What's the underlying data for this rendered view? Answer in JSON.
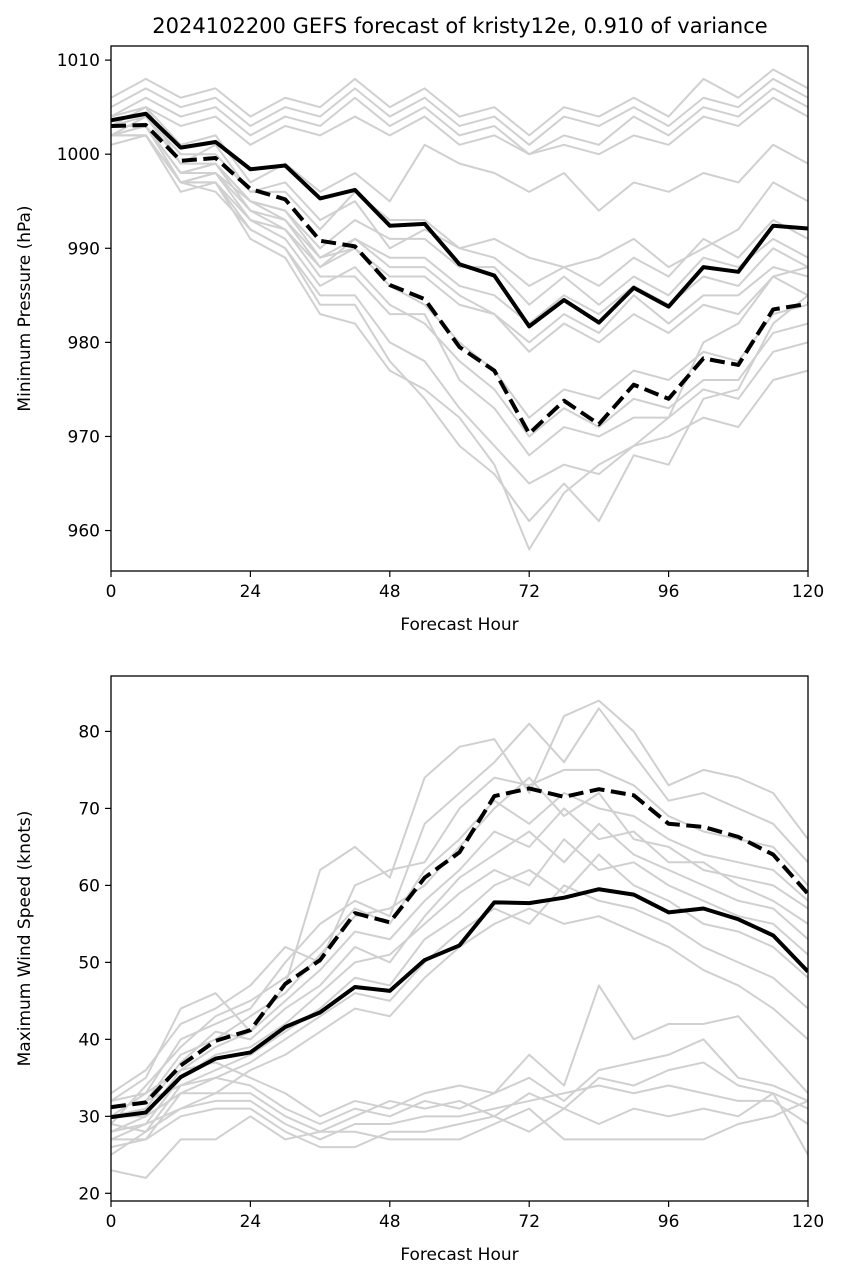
{
  "figure": {
    "title": "2024102200 GEFS forecast of kristy12e, 0.910 of variance"
  },
  "colors": {
    "member": "#d0d0d0",
    "highlight": "#000000",
    "axis": "#000000"
  },
  "chart_data": [
    {
      "type": "line",
      "title": "2024102200 GEFS forecast of kristy12e, 0.910 of variance",
      "xlabel": "Forecast Hour",
      "ylabel": "Minimum Pressure (hPa)",
      "xlim": [
        0,
        120
      ],
      "ylim": [
        955.7,
        1011.5
      ],
      "xticks": [
        0,
        24,
        48,
        72,
        96,
        120
      ],
      "yticks": [
        960,
        970,
        980,
        990,
        1000,
        1010
      ],
      "x": [
        0,
        6,
        12,
        18,
        24,
        30,
        36,
        42,
        48,
        54,
        60,
        66,
        72,
        78,
        84,
        90,
        96,
        102,
        108,
        114,
        120
      ],
      "grid": false,
      "series": [
        {
          "style": "member",
          "values": [
            1006,
            1008,
            1006,
            1007,
            1004,
            1006,
            1005,
            1008,
            1005,
            1007,
            1004,
            1005,
            1002,
            1005,
            1004,
            1006,
            1004,
            1008,
            1006,
            1009,
            1007
          ]
        },
        {
          "style": "member",
          "values": [
            1005,
            1007,
            1005,
            1006,
            1003,
            1005,
            1004,
            1007,
            1004,
            1006,
            1003,
            1004,
            1001,
            1004,
            1003,
            1005,
            1003,
            1006,
            1005,
            1008,
            1006
          ]
        },
        {
          "style": "member",
          "values": [
            1004,
            1006,
            1004,
            1005,
            1002,
            1004,
            1003,
            1006,
            1003,
            1005,
            1002,
            1003,
            1000,
            1002,
            1001,
            1004,
            1002,
            1005,
            1004,
            1007,
            1005
          ]
        },
        {
          "style": "member",
          "values": [
            1003,
            1005,
            1003,
            1004,
            1001,
            1003,
            1002,
            1004,
            1002,
            1004,
            1001,
            1002,
            1000,
            1001,
            1000,
            1002,
            1001,
            1004,
            1003,
            1006,
            1004
          ]
        },
        {
          "style": "member",
          "values": [
            1004,
            1005,
            1001,
            1002,
            997,
            999,
            996,
            998,
            995,
            1001,
            999,
            998,
            996,
            998,
            994,
            997,
            996,
            998,
            997,
            1001,
            999
          ]
        },
        {
          "style": "member",
          "values": [
            1003,
            1004,
            1000,
            1000,
            996,
            997,
            993,
            995,
            990,
            992,
            990,
            991,
            989,
            988,
            989,
            991,
            988,
            990,
            992,
            997,
            995
          ]
        },
        {
          "style": "member",
          "values": [
            1002,
            1004,
            999,
            1001,
            996,
            996,
            992,
            996,
            993,
            993,
            990,
            989,
            986,
            988,
            986,
            989,
            987,
            991,
            989,
            993,
            991
          ]
        },
        {
          "style": "member",
          "values": [
            1003,
            1003,
            998,
            998,
            995,
            994,
            990,
            993,
            991,
            991,
            988,
            988,
            984,
            987,
            984,
            987,
            985,
            989,
            988,
            991,
            989
          ]
        },
        {
          "style": "member",
          "values": [
            1002,
            1003,
            998,
            999,
            995,
            993,
            989,
            991,
            989,
            989,
            986,
            985,
            982,
            985,
            983,
            986,
            984,
            987,
            986,
            990,
            988
          ]
        },
        {
          "style": "member",
          "values": [
            1001,
            1002,
            997,
            997,
            993,
            992,
            988,
            990,
            987,
            987,
            984,
            983,
            980,
            983,
            981,
            985,
            982,
            985,
            985,
            988,
            987
          ]
        },
        {
          "style": "member",
          "values": [
            1002,
            1002,
            997,
            998,
            994,
            993,
            988,
            991,
            988,
            988,
            985,
            983,
            979,
            982,
            980,
            983,
            981,
            984,
            983,
            987,
            985
          ]
        },
        {
          "style": "member",
          "values": [
            1004,
            1005,
            999,
            999,
            995,
            994,
            989,
            990,
            986,
            984,
            980,
            977,
            972,
            975,
            974,
            977,
            976,
            979,
            978,
            983,
            984
          ]
        },
        {
          "style": "member",
          "values": [
            1002,
            1003,
            997,
            998,
            993,
            991,
            986,
            988,
            984,
            982,
            978,
            975,
            970,
            973,
            971,
            974,
            973,
            976,
            976,
            981,
            982
          ]
        },
        {
          "style": "member",
          "values": [
            1003,
            1003,
            998,
            999,
            994,
            992,
            987,
            987,
            983,
            983,
            976,
            973,
            968,
            971,
            970,
            972,
            972,
            975,
            974,
            979,
            980
          ]
        },
        {
          "style": "member",
          "values": [
            1002,
            1002,
            997,
            996,
            992,
            990,
            985,
            985,
            980,
            978,
            973,
            969,
            965,
            967,
            966,
            969,
            970,
            972,
            971,
            976,
            977
          ]
        },
        {
          "style": "member",
          "values": [
            1003,
            1003,
            997,
            997,
            992,
            990,
            984,
            984,
            978,
            974,
            969,
            966,
            961,
            965,
            961,
            968,
            967,
            974,
            975,
            982,
            985
          ]
        },
        {
          "style": "member",
          "values": [
            1002,
            1002,
            996,
            997,
            991,
            989,
            983,
            982,
            977,
            975,
            972,
            967,
            958,
            964,
            967,
            969,
            972,
            980,
            982,
            987,
            988
          ]
        },
        {
          "style": "highlight",
          "dash": false,
          "values": [
            1003.6,
            1004.3,
            1000.7,
            1001.3,
            998.4,
            998.8,
            995.3,
            996.2,
            992.4,
            992.6,
            988.3,
            987.1,
            981.7,
            984.5,
            982.1,
            985.8,
            983.8,
            988.0,
            987.5,
            992.4,
            992.1
          ]
        },
        {
          "style": "highlight",
          "dash": true,
          "values": [
            1003.0,
            1003.1,
            999.3,
            999.6,
            996.3,
            995.2,
            990.8,
            990.2,
            986.1,
            984.6,
            979.5,
            977.0,
            970.3,
            973.8,
            971.3,
            975.5,
            974.0,
            978.3,
            977.6,
            983.5,
            984.1
          ]
        }
      ]
    },
    {
      "type": "line",
      "title": "",
      "xlabel": "Forecast Hour",
      "ylabel": "Maximum Wind Speed (knots)",
      "xlim": [
        0,
        120
      ],
      "ylim": [
        19,
        87.2
      ],
      "xticks": [
        0,
        24,
        48,
        72,
        96,
        120
      ],
      "yticks": [
        20,
        30,
        40,
        50,
        60,
        70,
        80
      ],
      "x": [
        0,
        6,
        12,
        18,
        24,
        30,
        36,
        42,
        48,
        54,
        60,
        66,
        72,
        78,
        84,
        90,
        96,
        102,
        108,
        114,
        120
      ],
      "grid": false,
      "series": [
        {
          "style": "member",
          "values": [
            32,
            35,
            44,
            46,
            41,
            47,
            62,
            65,
            61,
            74,
            78,
            79,
            72,
            82,
            84,
            80,
            73,
            75,
            74,
            72,
            66
          ]
        },
        {
          "style": "member",
          "values": [
            30,
            33,
            40,
            42,
            44,
            50,
            55,
            58,
            56,
            68,
            72,
            76,
            81,
            76,
            83,
            77,
            71,
            72,
            70,
            68,
            63
          ]
        },
        {
          "style": "member",
          "values": [
            33,
            36,
            42,
            44,
            47,
            52,
            50,
            60,
            62,
            63,
            70,
            74,
            73,
            75,
            75,
            73,
            69,
            67,
            66,
            65,
            60
          ]
        },
        {
          "style": "member",
          "values": [
            29,
            34,
            39,
            43,
            45,
            48,
            52,
            57,
            55,
            62,
            66,
            71,
            68,
            72,
            70,
            69,
            66,
            64,
            63,
            62,
            58
          ]
        },
        {
          "style": "member",
          "values": [
            31,
            32,
            38,
            40,
            43,
            46,
            51,
            56,
            57,
            60,
            65,
            70,
            74,
            69,
            72,
            66,
            65,
            62,
            61,
            60,
            57
          ]
        },
        {
          "style": "member",
          "values": [
            28,
            30,
            36,
            39,
            41,
            45,
            49,
            54,
            53,
            58,
            62,
            67,
            65,
            70,
            66,
            67,
            63,
            63,
            60,
            58,
            55
          ]
        },
        {
          "style": "member",
          "values": [
            30,
            31,
            37,
            41,
            40,
            44,
            47,
            52,
            50,
            56,
            61,
            64,
            67,
            63,
            68,
            64,
            62,
            60,
            58,
            57,
            53
          ]
        },
        {
          "style": "member",
          "values": [
            27,
            29,
            35,
            38,
            39,
            42,
            46,
            50,
            51,
            55,
            59,
            62,
            60,
            66,
            62,
            63,
            60,
            58,
            56,
            55,
            51
          ]
        },
        {
          "style": "member",
          "values": [
            29,
            28,
            34,
            36,
            38,
            41,
            44,
            48,
            47,
            53,
            56,
            60,
            62,
            59,
            64,
            60,
            58,
            55,
            54,
            52,
            48
          ]
        },
        {
          "style": "member",
          "values": [
            26,
            27,
            33,
            35,
            37,
            40,
            43,
            46,
            45,
            50,
            54,
            57,
            55,
            60,
            58,
            57,
            55,
            52,
            50,
            48,
            44
          ]
        },
        {
          "style": "member",
          "values": [
            25,
            28,
            31,
            33,
            36,
            38,
            41,
            44,
            43,
            48,
            52,
            55,
            57,
            55,
            56,
            54,
            52,
            49,
            47,
            44,
            40
          ]
        },
        {
          "style": "member",
          "values": [
            32,
            33,
            36,
            37,
            35,
            33,
            30,
            32,
            31,
            33,
            34,
            33,
            38,
            34,
            47,
            40,
            42,
            42,
            43,
            38,
            33
          ]
        },
        {
          "style": "member",
          "values": [
            31,
            32,
            34,
            35,
            34,
            31,
            29,
            31,
            30,
            32,
            31,
            33,
            35,
            32,
            36,
            37,
            38,
            40,
            35,
            34,
            32
          ]
        },
        {
          "style": "member",
          "values": [
            30,
            30,
            33,
            33,
            33,
            30,
            28,
            30,
            32,
            31,
            32,
            30,
            33,
            31,
            35,
            34,
            36,
            37,
            34,
            33,
            31
          ]
        },
        {
          "style": "member",
          "values": [
            28,
            29,
            31,
            32,
            32,
            29,
            27,
            29,
            29,
            30,
            30,
            31,
            32,
            33,
            34,
            33,
            34,
            33,
            32,
            32,
            29
          ]
        },
        {
          "style": "member",
          "values": [
            27,
            27,
            30,
            31,
            31,
            28,
            26,
            26,
            28,
            28,
            29,
            30,
            28,
            31,
            29,
            31,
            30,
            31,
            30,
            33,
            25
          ]
        },
        {
          "style": "member",
          "values": [
            23,
            22,
            27,
            27,
            30,
            27,
            28,
            28,
            27,
            27,
            27,
            29,
            31,
            27,
            27,
            27,
            27,
            27,
            29,
            30,
            32
          ]
        },
        {
          "style": "highlight",
          "dash": false,
          "values": [
            29.9,
            30.5,
            35.1,
            37.5,
            38.3,
            41.6,
            43.5,
            46.8,
            46.3,
            50.3,
            52.2,
            57.8,
            57.7,
            58.4,
            59.5,
            58.8,
            56.5,
            57.0,
            55.6,
            53.5,
            48.8
          ]
        },
        {
          "style": "highlight",
          "dash": true,
          "values": [
            31.2,
            31.8,
            36.6,
            39.8,
            41.2,
            47.2,
            50.3,
            56.4,
            55.2,
            61.0,
            64.3,
            71.6,
            72.6,
            71.5,
            72.5,
            71.7,
            68.0,
            67.6,
            66.3,
            64.0,
            58.9
          ]
        }
      ]
    }
  ]
}
